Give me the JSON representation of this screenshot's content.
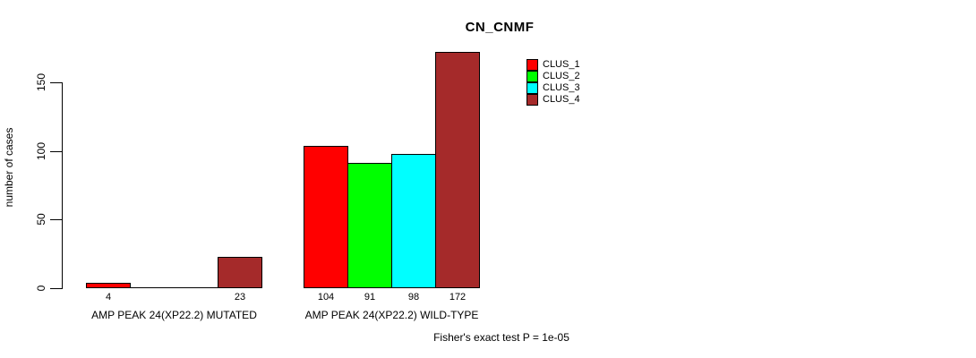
{
  "chart_data": {
    "type": "bar",
    "title": "CN_CNMF",
    "ylabel": "number of cases",
    "xlabel": "",
    "footnote": "Fisher's exact test P = 1e-05",
    "categories": [
      "AMP PEAK 24(XP22.2) MUTATED",
      "AMP PEAK 24(XP22.2) WILD-TYPE"
    ],
    "series": [
      {
        "name": "CLUS_1",
        "color": "#FF0000",
        "values": [
          4,
          104
        ]
      },
      {
        "name": "CLUS_2",
        "color": "#00FF00",
        "values": [
          0,
          91
        ]
      },
      {
        "name": "CLUS_3",
        "color": "#00FFFF",
        "values": [
          0,
          98
        ]
      },
      {
        "name": "CLUS_4",
        "color": "#A52A2A",
        "values": [
          23,
          172
        ]
      }
    ],
    "bar_value_labels": [
      [
        "4",
        "",
        "",
        "23"
      ],
      [
        "104",
        "91",
        "98",
        "172"
      ]
    ],
    "yticks": [
      0,
      50,
      100,
      150
    ],
    "ylim": [
      0,
      172
    ],
    "grid": false,
    "legend_position": "top-right",
    "background": "#FFFFFF",
    "bar_border_color": "#000000"
  }
}
